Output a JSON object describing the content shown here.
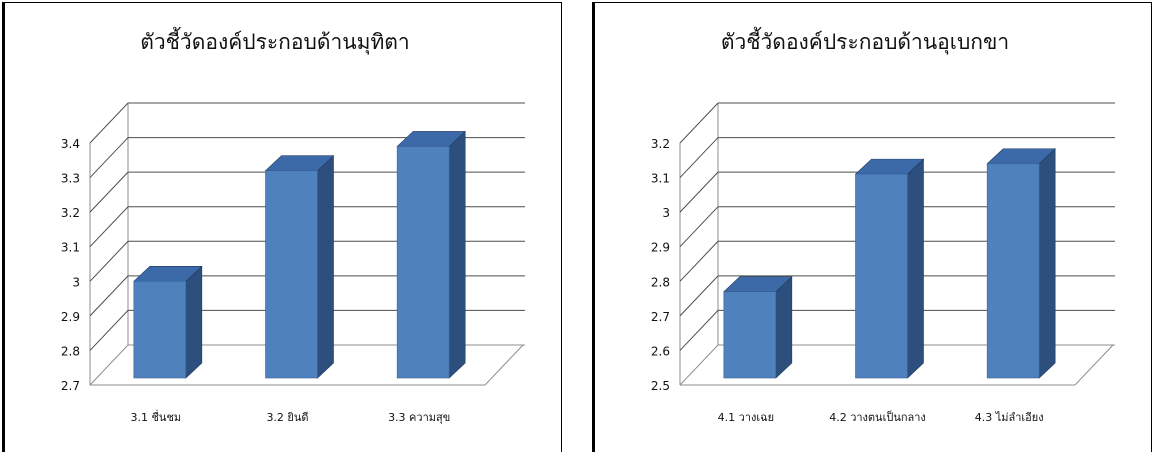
{
  "chart_data": [
    {
      "type": "bar",
      "title": "ตัวชี้วัดองค์ประกอบด้านมุทิตา",
      "categories": [
        "3.1 ชื่นชม",
        "3.2 ยินดี",
        "3.3 ความสุข"
      ],
      "values": [
        3.0,
        3.32,
        3.39
      ],
      "ylim": [
        2.7,
        3.4
      ],
      "yticks": [
        "2.7",
        "2.8",
        "2.9",
        "3",
        "3.1",
        "3.2",
        "3.3",
        "3.4"
      ],
      "grid": true,
      "three_d": true,
      "bar_color": "#4f81bd"
    },
    {
      "type": "bar",
      "title": "ตัวชี้วัดองค์ประกอบด้านอุเบกขา",
      "categories": [
        "4.1 วางเฉย",
        "4.2 วางตนเป็นกลาง",
        "4.3 ไม่ลำเอียง"
      ],
      "values": [
        2.77,
        3.11,
        3.14
      ],
      "ylim": [
        2.5,
        3.2
      ],
      "yticks": [
        "2.5",
        "2.6",
        "2.7",
        "2.8",
        "2.9",
        "3",
        "3.1",
        "3.2"
      ],
      "grid": true,
      "three_d": true,
      "bar_color": "#4f81bd"
    }
  ]
}
